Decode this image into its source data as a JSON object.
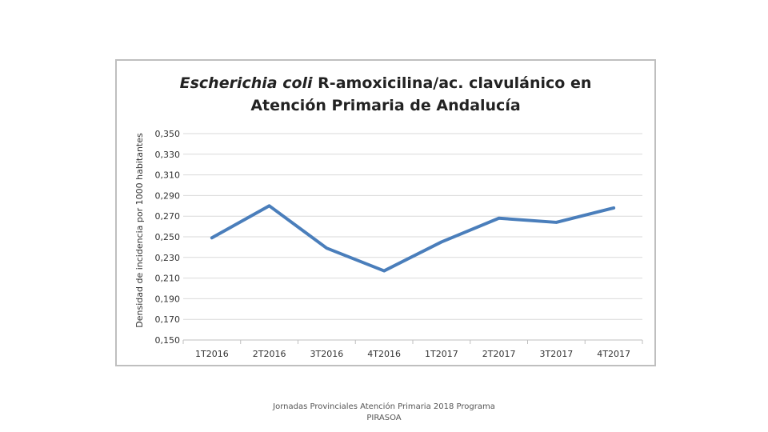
{
  "chart_data": {
    "type": "line",
    "title_italic": "Escherichia coli",
    "title_rest": " R-amoxicilina/ac. clavulánico en",
    "title_line2": "Atención Primaria de Andalucía",
    "ylabel": "Densidad de incidencia por 1000 habitantes",
    "xlabel": "",
    "ylim": [
      0.15,
      0.35
    ],
    "yticks": [
      "0,350",
      "0,330",
      "0,310",
      "0,290",
      "0,270",
      "0,250",
      "0,230",
      "0,210",
      "0,190",
      "0,170",
      "0,150"
    ],
    "ytick_values": [
      0.35,
      0.33,
      0.31,
      0.29,
      0.27,
      0.25,
      0.23,
      0.21,
      0.19,
      0.17,
      0.15
    ],
    "categories": [
      "1T2016",
      "2T2016",
      "3T2016",
      "4T2016",
      "1T2017",
      "2T2017",
      "3T2017",
      "4T2017"
    ],
    "series": [
      {
        "name": "Densidad",
        "values": [
          0.249,
          0.28,
          0.239,
          0.217,
          0.245,
          0.268,
          0.264,
          0.278
        ]
      }
    ],
    "grid": true,
    "line_color": "#4a7ebb",
    "grid_color": "#d9d9d9"
  },
  "footer": {
    "line1": "Jornadas Provinciales Atención Primaria 2018  Programa",
    "line2": "PIRASOA"
  }
}
